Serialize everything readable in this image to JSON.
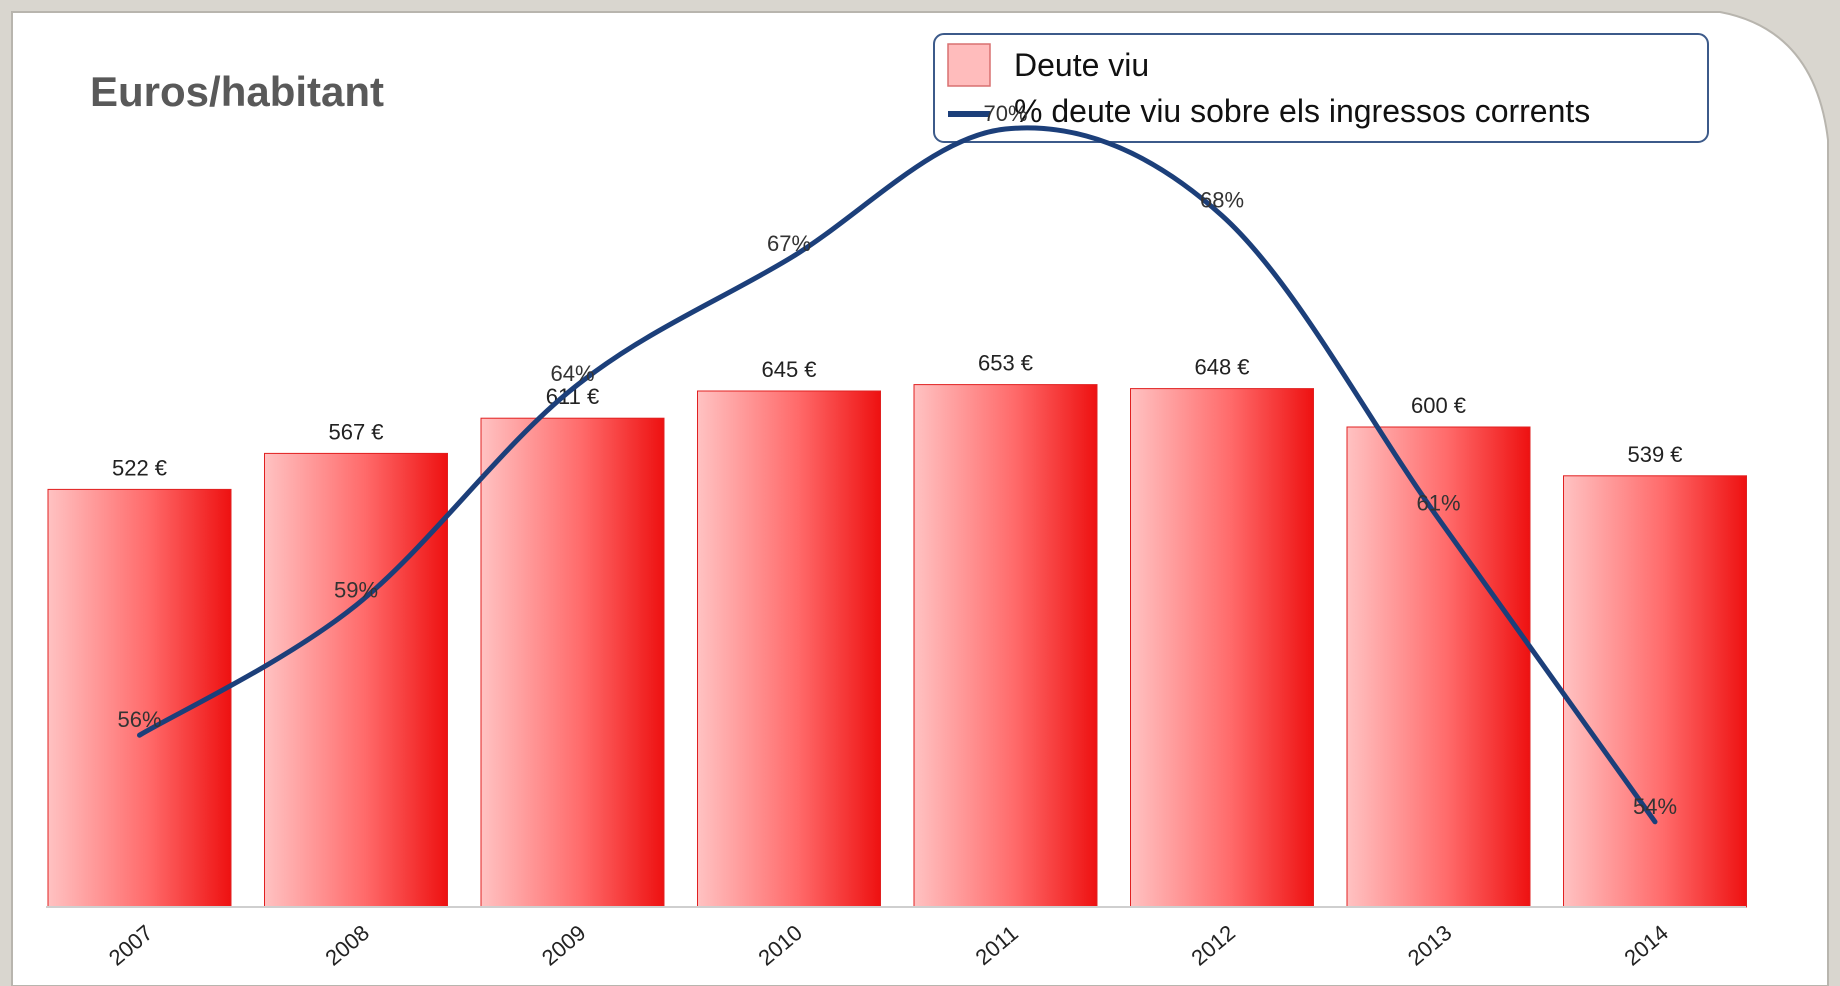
{
  "chart_data": {
    "type": "bar",
    "title": "Euros/habitant",
    "categories": [
      "2007",
      "2008",
      "2009",
      "2010",
      "2011",
      "2012",
      "2013",
      "2014"
    ],
    "series": [
      {
        "name": "Deute viu",
        "type": "bar",
        "values": [
          522,
          567,
          611,
          645,
          653,
          648,
          600,
          539
        ],
        "labels": [
          "522 €",
          "567 €",
          "611 €",
          "645 €",
          "653 €",
          "648 €",
          "600 €",
          "539 €"
        ],
        "color": "#ff2b2b"
      },
      {
        "name": "% deute viu sobre els ingressos corrents",
        "type": "line",
        "values": [
          56,
          59,
          64,
          67,
          70,
          68,
          61,
          54
        ],
        "labels": [
          "56%",
          "59%",
          "64%",
          "67%",
          "70%",
          "68%",
          "61%",
          "54%"
        ],
        "color": "#1c3f7a"
      }
    ],
    "legend_position": "top-right",
    "grid": false
  }
}
